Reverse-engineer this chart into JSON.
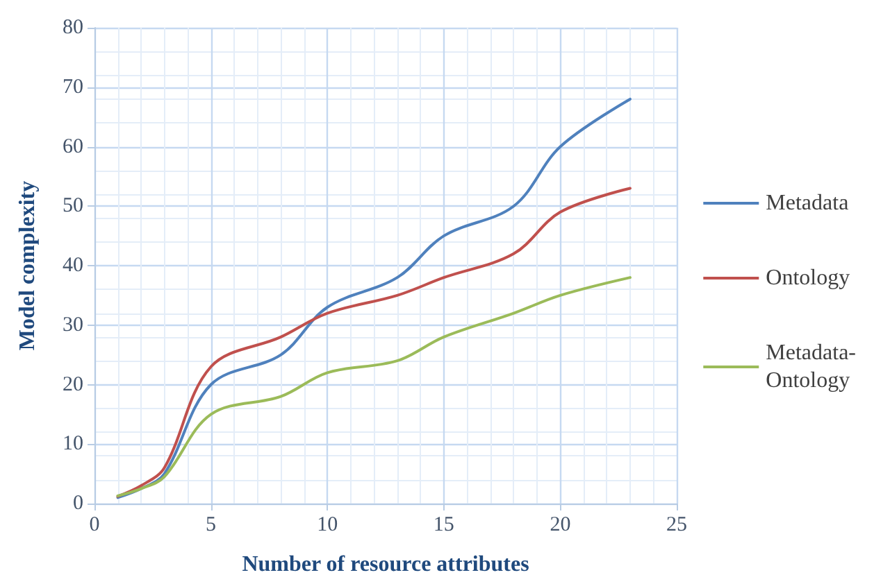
{
  "chart_data": {
    "type": "line",
    "xlabel": "Number of resource attributes",
    "ylabel": "Model complexity",
    "x": [
      1,
      2,
      3,
      5,
      8,
      10,
      13,
      15,
      18,
      20,
      23
    ],
    "series": [
      {
        "name": "Metadata",
        "color": "#4f81bd",
        "values": [
          1,
          2.5,
          5,
          20,
          25,
          33,
          38,
          45,
          50,
          60,
          68
        ]
      },
      {
        "name": "Ontology",
        "color": "#c0504d",
        "values": [
          1.2,
          3,
          6,
          23,
          28,
          32,
          35,
          38,
          42,
          49,
          53
        ]
      },
      {
        "name": "Metadata-\nOntology",
        "color": "#9bbb59",
        "values": [
          1.3,
          2.5,
          4.5,
          15,
          18,
          22,
          24,
          28,
          32,
          35,
          38
        ]
      }
    ],
    "xlim": [
      0,
      25
    ],
    "xticks": [
      0,
      5,
      10,
      15,
      20,
      25
    ],
    "ylim": [
      0,
      80
    ],
    "yticks": [
      0,
      10,
      20,
      30,
      40,
      50,
      60,
      70,
      80
    ],
    "grid": true,
    "legend": "right",
    "marker": "none",
    "line_style": "solid"
  }
}
